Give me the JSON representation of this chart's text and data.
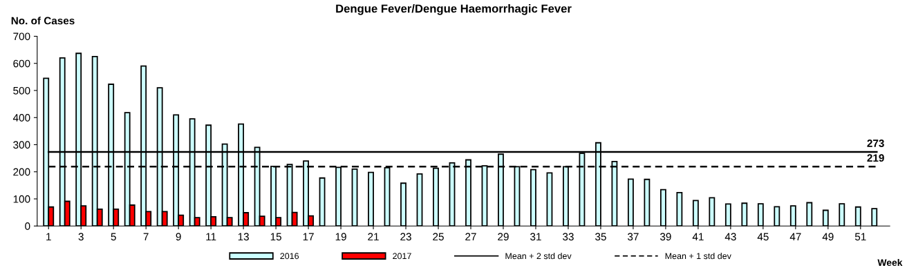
{
  "chart_data": {
    "type": "bar",
    "title": "Dengue Fever/Dengue Haemorrhagic Fever",
    "ylabel": "No. of Cases",
    "xlabel": "Week",
    "categories": [
      "1",
      null,
      "3",
      null,
      "5",
      null,
      "7",
      null,
      "9",
      null,
      "11",
      null,
      "13",
      null,
      "15",
      null,
      "17",
      null,
      "19",
      null,
      "21",
      null,
      "23",
      null,
      "25",
      null,
      "27",
      null,
      "29",
      null,
      "31",
      null,
      "33",
      null,
      "35",
      null,
      "37",
      null,
      "39",
      null,
      "41",
      null,
      "43",
      null,
      "45",
      null,
      "47",
      null,
      "49",
      null,
      "51",
      null
    ],
    "series": [
      {
        "name": "2016",
        "color": "#ccffff",
        "values": [
          545,
          620,
          637,
          625,
          523,
          418,
          590,
          510,
          410,
          395,
          372,
          302,
          376,
          290,
          220,
          227,
          240,
          177,
          216,
          210,
          198,
          215,
          158,
          192,
          213,
          233,
          244,
          222,
          265,
          219,
          208,
          196,
          219,
          268,
          307,
          238,
          173,
          172,
          134,
          123,
          94,
          104,
          81,
          84,
          82,
          71,
          74,
          86,
          58,
          82,
          70,
          64
        ]
      },
      {
        "name": "2017",
        "color": "#ff0000",
        "values": [
          70,
          91,
          74,
          62,
          62,
          77,
          53,
          53,
          40,
          31,
          34,
          31,
          49,
          36,
          31,
          50,
          37,
          null,
          null,
          null,
          null,
          null,
          null,
          null,
          null,
          null,
          null,
          null,
          null,
          null,
          null,
          null,
          null,
          null,
          null,
          null,
          null,
          null,
          null,
          null,
          null,
          null,
          null,
          null,
          null,
          null,
          null,
          null,
          null,
          null,
          null,
          null
        ]
      },
      {
        "name": "Mean + 2 std dev",
        "type": "line",
        "color": "#000000",
        "line_style": "solid",
        "values": [
          273,
          273,
          273,
          273,
          273,
          273,
          273,
          273,
          273,
          273,
          273,
          273,
          273,
          273,
          273,
          273,
          273,
          273,
          273,
          273,
          273,
          273,
          273,
          273,
          273,
          273,
          273,
          273,
          273,
          273,
          273,
          273,
          273,
          273,
          273,
          273,
          273,
          273,
          273,
          273,
          273,
          273,
          273,
          273,
          273,
          273,
          273,
          273,
          273,
          273,
          273,
          273
        ]
      },
      {
        "name": "Mean + 1 std dev",
        "type": "line",
        "color": "#000000",
        "line_style": "dashed",
        "values": [
          219,
          219,
          219,
          219,
          219,
          219,
          219,
          219,
          219,
          219,
          219,
          219,
          219,
          219,
          219,
          219,
          219,
          219,
          219,
          219,
          219,
          219,
          219,
          219,
          219,
          219,
          219,
          219,
          219,
          219,
          219,
          219,
          219,
          219,
          219,
          219,
          219,
          219,
          219,
          219,
          219,
          219,
          219,
          219,
          219,
          219,
          219,
          219,
          219,
          219,
          219,
          219
        ]
      }
    ],
    "annotations": [
      {
        "text": "273",
        "y": 273
      },
      {
        "text": "219",
        "y": 219
      }
    ],
    "ylim": [
      0,
      700
    ],
    "yticks": [
      0,
      100,
      200,
      300,
      400,
      500,
      600,
      700
    ],
    "grid": false,
    "legend": "bottom"
  }
}
